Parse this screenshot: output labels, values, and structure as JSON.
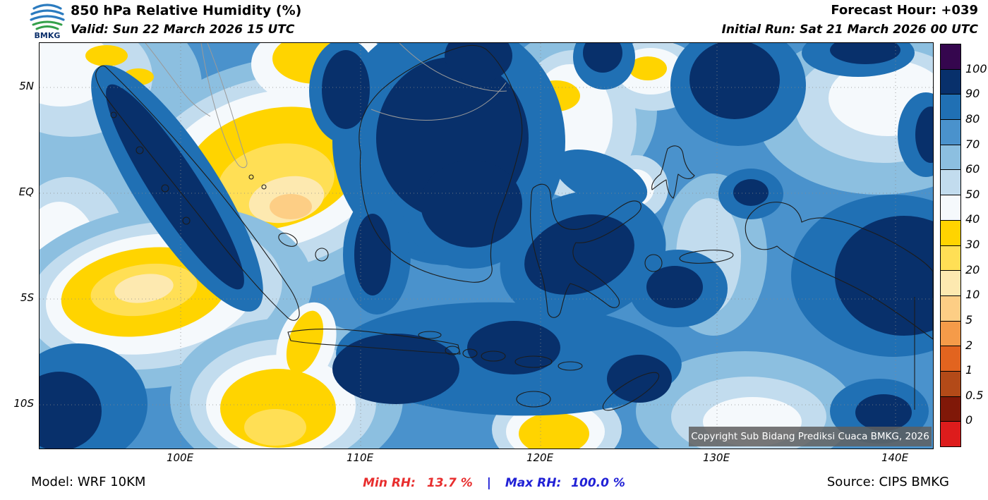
{
  "header": {
    "logo_text": "BMKG",
    "title": "850 hPa Relative Humidity (%)",
    "valid": "Valid: Sun 22 March 2026 15 UTC",
    "forecast_hour": "Forecast Hour: +039",
    "initial_run": "Initial Run: Sat 21 March 2026 00 UTC"
  },
  "map": {
    "lat_labels": [
      "5N",
      "EQ",
      "5S",
      "10S"
    ],
    "lon_labels": [
      "100E",
      "110E",
      "120E",
      "130E",
      "140E"
    ],
    "copyright": "Copyright Sub Bidang Prediksi Cuaca BMKG, 2026"
  },
  "colorbar": {
    "labels": [
      "100",
      "90",
      "80",
      "70",
      "60",
      "50",
      "40",
      "30",
      "20",
      "10",
      "5",
      "2",
      "1",
      "0.5",
      "0"
    ],
    "colors": [
      "#35064e",
      "#08306b",
      "#2070b4",
      "#4a92cc",
      "#8cbfe0",
      "#c2dcee",
      "#f5f9fc",
      "#ffd400",
      "#ffdf55",
      "#fde9b0",
      "#fdce85",
      "#f59b49",
      "#e2641f",
      "#b34a18",
      "#801808",
      "#dd1c1c"
    ]
  },
  "footer": {
    "model": "Model: WRF 10KM",
    "min_label": "Min RH:",
    "min_value": "13.7 %",
    "separator": "|",
    "max_label": "Max RH:",
    "max_value": "100.0 %",
    "source": "Source: CIPS BMKG"
  },
  "colors": {
    "min_rh": "#e82e2e",
    "max_rh": "#2121d6"
  }
}
